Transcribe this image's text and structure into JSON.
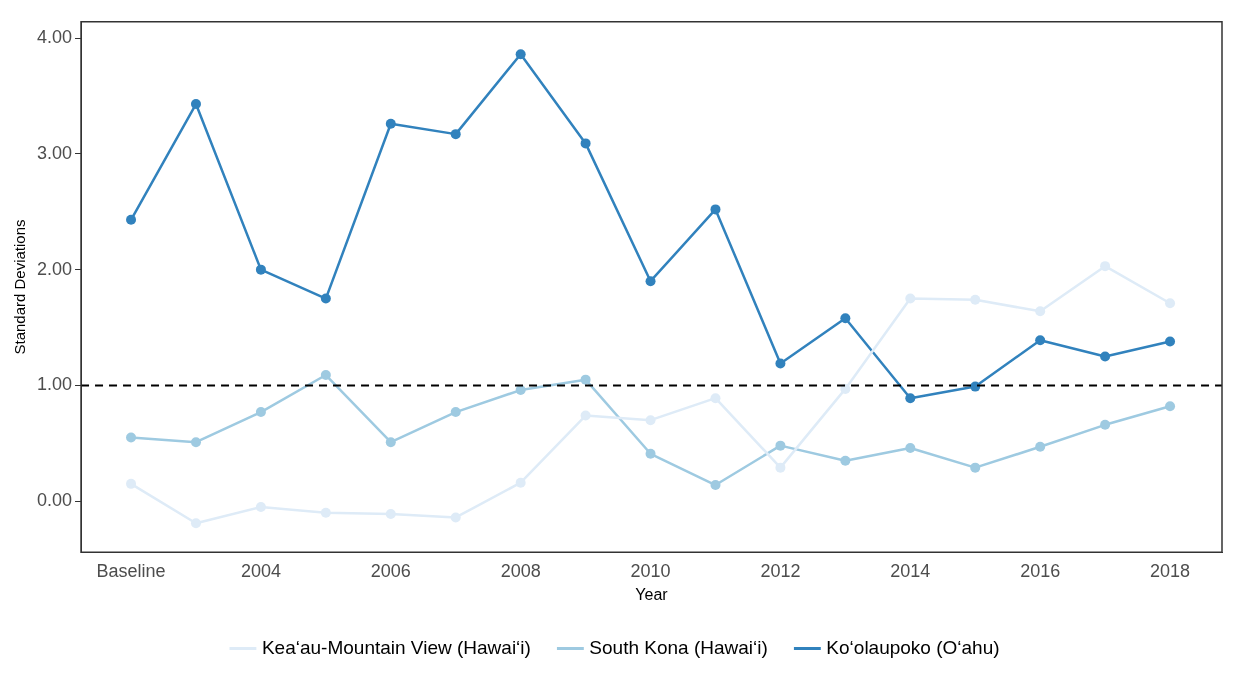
{
  "chart_data": {
    "type": "line",
    "xlabel": "Year",
    "ylabel": "Standard Deviations",
    "categories": [
      "Baseline",
      null,
      "2004",
      null,
      "2006",
      null,
      "2008",
      null,
      "2010",
      null,
      "2012",
      null,
      "2014",
      null,
      "2016",
      null,
      "2018"
    ],
    "series": [
      {
        "name": "Kea‘au-Mountain View (Hawai‘i)",
        "color": "#deebf7",
        "values": [
          0.15,
          -0.19,
          -0.05,
          -0.1,
          -0.11,
          -0.14,
          0.16,
          0.74,
          0.7,
          0.89,
          0.29,
          0.97,
          1.75,
          1.74,
          1.64,
          2.03,
          1.71
        ]
      },
      {
        "name": "South Kona (Hawai‘i)",
        "color": "#9ecae1",
        "values": [
          0.55,
          0.51,
          0.77,
          1.09,
          0.51,
          0.77,
          0.96,
          1.05,
          0.41,
          0.14,
          0.48,
          0.35,
          0.46,
          0.29,
          0.47,
          0.66,
          0.82
        ]
      },
      {
        "name": "Ko‘olaupoko (O‘ahu)",
        "color": "#3182bd",
        "values": [
          2.43,
          3.43,
          2.0,
          1.75,
          3.26,
          3.17,
          3.86,
          3.09,
          1.9,
          2.52,
          1.19,
          1.58,
          0.89,
          0.99,
          1.39,
          1.25,
          1.38
        ]
      }
    ],
    "ylim": [
      -0.44,
      4.14
    ],
    "yticks": [
      {
        "value": 0,
        "label": "0.00"
      },
      {
        "value": 1,
        "label": "1.00"
      },
      {
        "value": 2,
        "label": "2.00"
      },
      {
        "value": 3,
        "label": "3.00"
      },
      {
        "value": 4,
        "label": "4.00"
      }
    ],
    "ref_lines": [
      {
        "axis": "y",
        "value": 1,
        "color": "#000000",
        "line_style": "dashed"
      }
    ],
    "legend": "bottom",
    "marker": "circle",
    "line_style": "solid"
  }
}
